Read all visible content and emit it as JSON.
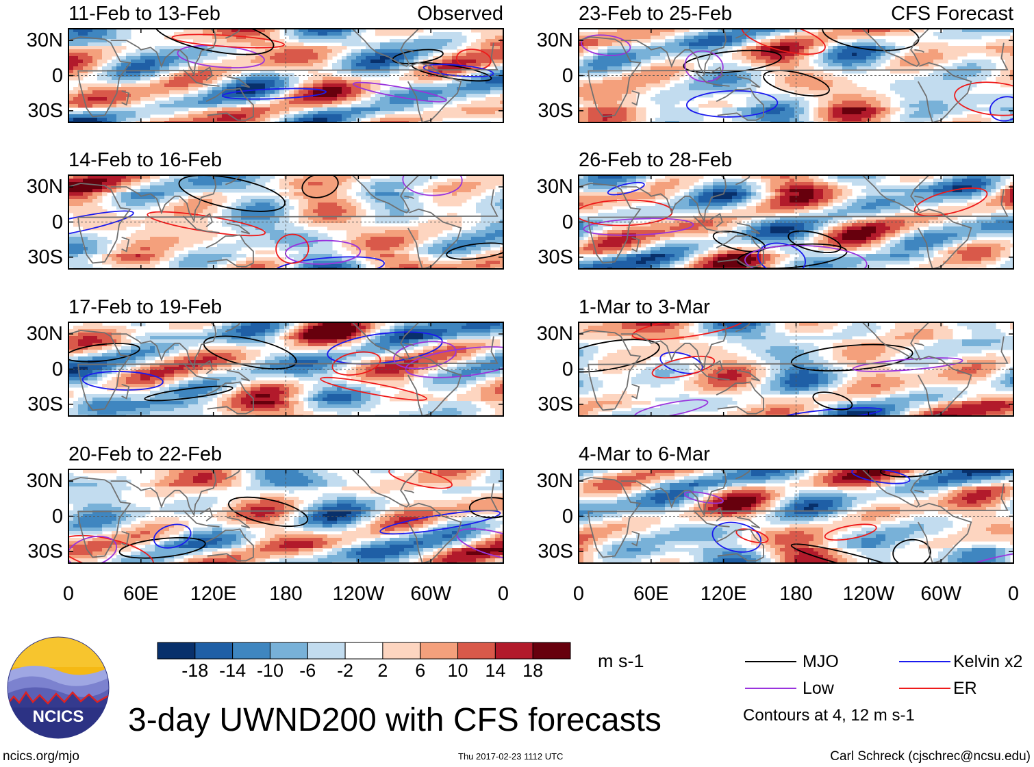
{
  "chart_data": {
    "type": "heatmap",
    "title": "3-day UWND200 with CFS forecasts",
    "variable": "UWND200",
    "units": "m s-1",
    "xlabel": "",
    "ylabel": "",
    "x_ticks": [
      "0",
      "60E",
      "120E",
      "180",
      "120W",
      "60W",
      "0"
    ],
    "y_ticks": [
      "30N",
      "0",
      "30S"
    ],
    "panels": [
      {
        "id": "obs1",
        "title": "11-Feb to 13-Feb",
        "tag": "Observed",
        "column": "left"
      },
      {
        "id": "obs2",
        "title": "14-Feb to 16-Feb",
        "tag": "",
        "column": "left"
      },
      {
        "id": "obs3",
        "title": "17-Feb to 19-Feb",
        "tag": "",
        "column": "left"
      },
      {
        "id": "obs4",
        "title": "20-Feb to 22-Feb",
        "tag": "",
        "column": "left"
      },
      {
        "id": "fc1",
        "title": "23-Feb to 25-Feb",
        "tag": "CFS Forecast",
        "column": "right"
      },
      {
        "id": "fc2",
        "title": "26-Feb to 28-Feb",
        "tag": "",
        "column": "right"
      },
      {
        "id": "fc3",
        "title": "1-Mar to 3-Mar",
        "tag": "",
        "column": "right"
      },
      {
        "id": "fc4",
        "title": "4-Mar to 6-Mar",
        "tag": "",
        "column": "right"
      }
    ],
    "colorbar": {
      "labels": [
        "-18",
        "-14",
        "-10",
        "-6",
        "-2",
        "2",
        "6",
        "10",
        "14",
        "18"
      ],
      "colors": [
        "#08306b",
        "#1f5fa6",
        "#3f86c0",
        "#78b1d8",
        "#c2dcef",
        "#ffffff",
        "#fdd5c0",
        "#f4a07c",
        "#d9594a",
        "#b21a2b",
        "#67000d"
      ],
      "units": "m s-1"
    },
    "legend": [
      {
        "label": "MJO",
        "color": "#000000"
      },
      {
        "label": "Kelvin x2",
        "color": "#1a1aee"
      },
      {
        "label": "Low",
        "color": "#9933dd"
      },
      {
        "label": "ER",
        "color": "#ee1a1a"
      }
    ],
    "contour_note": "Contours at 4, 12 m s-1"
  },
  "footer": {
    "logo_text": "NCICS",
    "website": "ncics.org/mjo",
    "timestamp": "Thu 2017-02-23 1112 UTC",
    "author": "Carl Schreck (cjschrec@ncsu.edu)"
  }
}
